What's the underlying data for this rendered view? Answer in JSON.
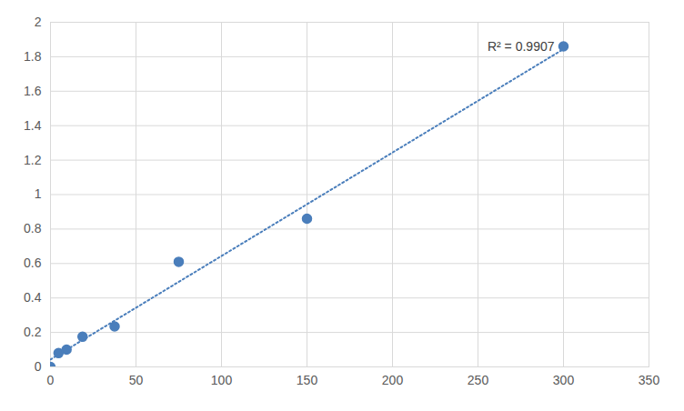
{
  "chart_data": {
    "type": "scatter",
    "x": [
      0,
      4.7,
      9.4,
      18.75,
      37.5,
      75,
      150,
      300
    ],
    "series": [
      {
        "values": [
          0,
          0.08,
          0.1,
          0.175,
          0.235,
          0.61,
          0.86,
          1.86
        ],
        "color": "#4a7ebb",
        "marker": "circle",
        "line_style": "dotted"
      }
    ],
    "annotations": [
      "R² = 0.9907"
    ],
    "xlim": [
      0,
      350
    ],
    "xticks": [
      0,
      50,
      100,
      150,
      200,
      250,
      300,
      350
    ],
    "ylim": [
      0,
      2
    ],
    "yticks": [
      0,
      0.2,
      0.4,
      0.6,
      0.8,
      1,
      1.2,
      1.4,
      1.6,
      1.8,
      2
    ],
    "grid": true
  }
}
